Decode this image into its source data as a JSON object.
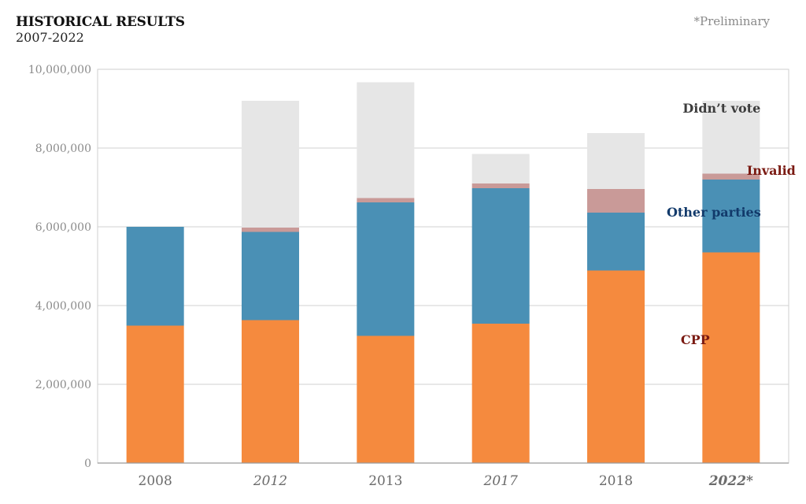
{
  "header": {
    "title": "HISTORICAL RESULTS",
    "subtitle": "2007-2022",
    "note": "*Preliminary"
  },
  "chart_data": {
    "type": "bar",
    "stacked": true,
    "categories": [
      "2008",
      "2012",
      "2013",
      "2017",
      "2018",
      "2022*"
    ],
    "category_styles": [
      "normal",
      "italic",
      "normal",
      "italic",
      "normal",
      "bold-italic"
    ],
    "series": [
      {
        "name": "CPP",
        "color": "#f58a3e",
        "label_color": "#7a1a12",
        "values": [
          3490000,
          3630000,
          3230000,
          3540000,
          4890000,
          5350000
        ]
      },
      {
        "name": "Other parties",
        "color": "#4a90b5",
        "label_color": "#123a6b",
        "values": [
          2510000,
          2240000,
          3390000,
          3440000,
          1470000,
          1850000
        ]
      },
      {
        "name": "Invalid",
        "color": "#c99a98",
        "label_color": "#7a1a12",
        "values": [
          0,
          110000,
          110000,
          120000,
          600000,
          150000
        ]
      },
      {
        "name": "Didn’t vote",
        "color": "#e6e6e6",
        "label_color": "#3d3d3d",
        "values": [
          0,
          3220000,
          2940000,
          750000,
          1420000,
          1850000
        ]
      }
    ],
    "series_label_anchor": "2022*",
    "ylim": [
      0,
      10000000
    ],
    "yticks": [
      0,
      2000000,
      4000000,
      6000000,
      8000000,
      10000000
    ],
    "ytick_labels": [
      "0",
      "2,000,000",
      "4,000,000",
      "6,000,000",
      "8,000,000",
      "10,000,000"
    ],
    "grid": true,
    "xlabel": "",
    "ylabel": ""
  }
}
